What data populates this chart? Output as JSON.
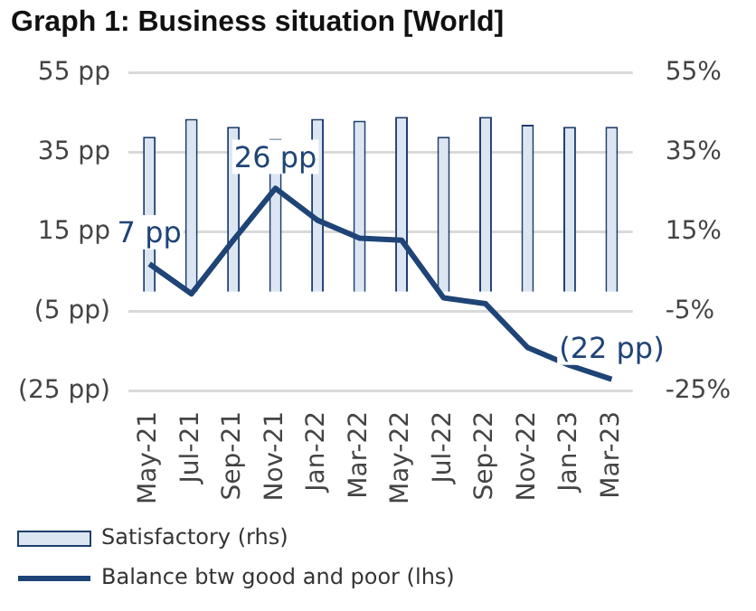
{
  "chart_data": {
    "type": "bar",
    "title": "Graph 1: Business situation [World]",
    "categories": [
      "May-21",
      "Jul-21",
      "Sep-21",
      "Nov-21",
      "Jan-22",
      "Mar-22",
      "May-22",
      "Jul-22",
      "Sep-22",
      "Nov-22",
      "Jan-23",
      "Mar-23"
    ],
    "series": [
      {
        "name": "Satisfactory (rhs)",
        "axis": "y2",
        "color": "#dce6f2",
        "values": [
          39,
          43.5,
          41.5,
          38.5,
          43.5,
          43,
          44,
          39,
          44,
          42,
          41.5,
          41.5
        ]
      },
      {
        "name": "Balance btw good and poor (lhs)",
        "type": "line",
        "color": "#1f4477",
        "values": [
          7,
          -0.5,
          13,
          26,
          18,
          13.5,
          13,
          -1.5,
          -3,
          -14,
          -18.5,
          -22
        ],
        "value_labels": [
          "7 pp",
          null,
          null,
          "26 pp",
          null,
          null,
          null,
          null,
          null,
          null,
          null,
          "(22 pp)"
        ]
      }
    ],
    "ylim": [
      -25,
      55
    ],
    "yticks": [
      {
        "value": 55,
        "label": "55 pp"
      },
      {
        "value": 35,
        "label": "35 pp"
      },
      {
        "value": 15,
        "label": "15 pp"
      },
      {
        "value": -5,
        "label": "(5 pp)"
      },
      {
        "value": -25,
        "label": "(25 pp)"
      }
    ],
    "y2lim": [
      -25,
      55
    ],
    "y2ticks": [
      {
        "value": 55,
        "label": "55%"
      },
      {
        "value": 35,
        "label": "35%"
      },
      {
        "value": 15,
        "label": "15%"
      },
      {
        "value": -5,
        "label": "-5%"
      },
      {
        "value": -25,
        "label": "-25%"
      }
    ],
    "grid": "y",
    "legend": "bottom",
    "marker": "none",
    "line_style": "solid"
  }
}
